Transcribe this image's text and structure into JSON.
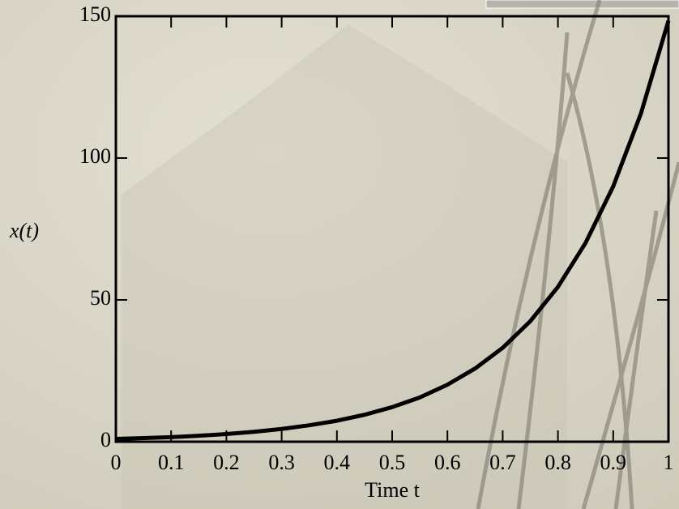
{
  "chart_data": {
    "type": "line",
    "xlabel": "Time t",
    "ylabel": "x(t)",
    "x": [
      0,
      0.05,
      0.1,
      0.15,
      0.2,
      0.25,
      0.3,
      0.35,
      0.4,
      0.45,
      0.5,
      0.55,
      0.6,
      0.65,
      0.7,
      0.75,
      0.8,
      0.85,
      0.9,
      0.95,
      1
    ],
    "series": [
      {
        "color": "#000000",
        "values": [
          1,
          1.3,
          1.6,
          2.1,
          2.7,
          3.5,
          4.5,
          5.8,
          7.4,
          9.5,
          12.2,
          15.6,
          20.1,
          25.8,
          33.1,
          42.5,
          54.6,
          70.1,
          90,
          115.6,
          148.4
        ]
      }
    ],
    "xlim": [
      0,
      1
    ],
    "ylim": [
      0,
      150
    ],
    "xticks": [
      0,
      0.1,
      0.2,
      0.3,
      0.4,
      0.5,
      0.6,
      0.7,
      0.8,
      0.9,
      1
    ],
    "yticks": [
      0,
      50,
      100,
      150
    ]
  }
}
